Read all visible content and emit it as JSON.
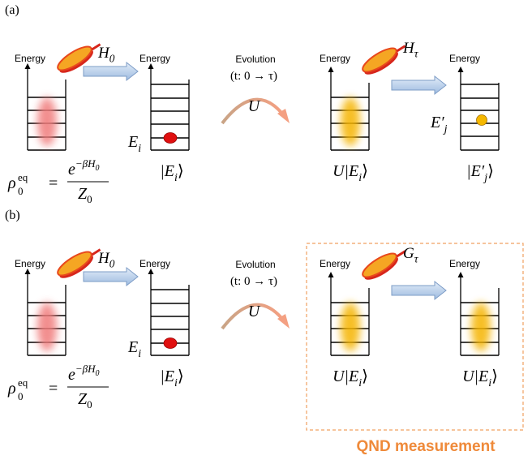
{
  "panels": [
    {
      "label": "(a)",
      "energy_labels": [
        "Energy",
        "Energy",
        "Energy",
        "Energy"
      ],
      "hamiltonian_1": {
        "symbol": "H",
        "subscript": "0"
      },
      "state_level": {
        "symbol": "E",
        "subscript": "i"
      },
      "state_ket": {
        "symbol": "|E",
        "subscript": "i",
        "suffix": "⟩"
      },
      "evolution": "Evolution",
      "time": "(t: 0 → τ)",
      "operator": "U",
      "hamiltonian_2": {
        "symbol": "H",
        "subscript": "τ"
      },
      "evolved_ket": {
        "symbol": "U|E",
        "subscript": "i",
        "suffix": "⟩"
      },
      "final_level": {
        "symbol": "E′",
        "subscript": "j"
      },
      "final_ket": {
        "symbol": "|E′",
        "subscript": "j",
        "suffix": "⟩"
      },
      "formula": {
        "lhs": "ρ",
        "lhs_sub": "0",
        "lhs_sup": "eq",
        "equals": "=",
        "num": "e",
        "num_sup": "−βH",
        "num_sup_sub": "0",
        "den": "Z",
        "den_sub": "0"
      }
    },
    {
      "label": "(b)",
      "energy_labels": [
        "Energy",
        "Energy",
        "Energy",
        "Energy"
      ],
      "hamiltonian_1": {
        "symbol": "H",
        "subscript": "0"
      },
      "state_level": {
        "symbol": "E",
        "subscript": "i"
      },
      "state_ket": {
        "symbol": "|E",
        "subscript": "i",
        "suffix": "⟩"
      },
      "evolution": "Evolution",
      "time": "(t: 0 → τ)",
      "operator": "U",
      "hamiltonian_2": {
        "symbol": "G",
        "subscript": "τ"
      },
      "evolved_ket": {
        "symbol": "U|E",
        "subscript": "i",
        "suffix": "⟩"
      },
      "final_ket": {
        "symbol": "U|E",
        "subscript": "i",
        "suffix": "⟩"
      },
      "formula": {
        "lhs": "ρ",
        "lhs_sub": "0",
        "lhs_sup": "eq",
        "equals": "=",
        "num": "e",
        "num_sup": "−βH",
        "num_sup_sub": "0",
        "den": "Z",
        "den_sub": "0"
      }
    }
  ],
  "qnd_label": "QND measurement"
}
